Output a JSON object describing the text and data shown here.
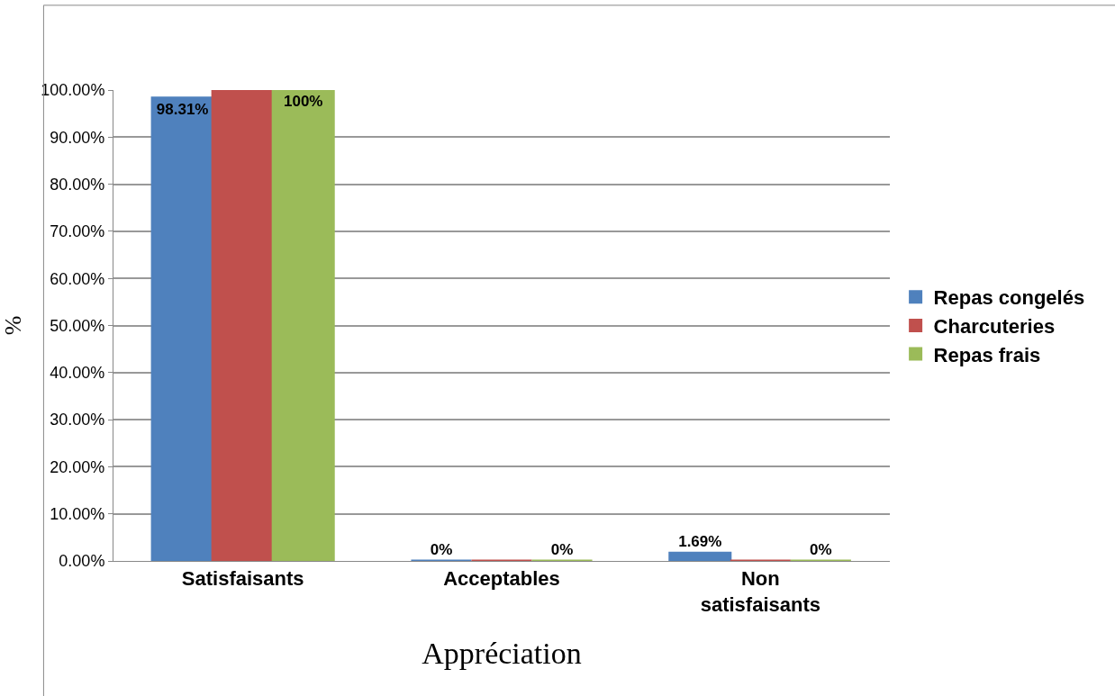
{
  "chart_data": {
    "type": "bar",
    "xlabel": "Appréciation",
    "ylabel": "%",
    "categories": [
      "Satisfaisants",
      "Acceptables",
      "Non satisfaisants"
    ],
    "series": [
      {
        "name": "Repas congelés",
        "color": "#4f81bd",
        "values": [
          98.31,
          0,
          1.69
        ],
        "value_labels": [
          "98.31%",
          "0%",
          "1.69%"
        ]
      },
      {
        "name": "Charcuteries",
        "color": "#c0504d",
        "values": [
          100,
          0,
          0
        ],
        "value_labels": [
          null,
          null,
          null
        ]
      },
      {
        "name": "Repas frais",
        "color": "#9bbb59",
        "values": [
          100,
          0,
          0
        ],
        "value_labels": [
          "100%",
          "0%",
          "0%"
        ]
      }
    ],
    "ylim": [
      0,
      100
    ],
    "yticks": [
      {
        "value": 0,
        "label": "0.00%"
      },
      {
        "value": 10,
        "label": "10.00%"
      },
      {
        "value": 20,
        "label": "20.00%"
      },
      {
        "value": 30,
        "label": "30.00%"
      },
      {
        "value": 40,
        "label": "40.00%"
      },
      {
        "value": 50,
        "label": "50.00%"
      },
      {
        "value": 60,
        "label": "60.00%"
      },
      {
        "value": 70,
        "label": "70.00%"
      },
      {
        "value": 80,
        "label": "80.00%"
      },
      {
        "value": 90,
        "label": "90.00%"
      },
      {
        "value": 100,
        "label": "100.00%"
      }
    ],
    "grid": "y",
    "legend": "right"
  }
}
